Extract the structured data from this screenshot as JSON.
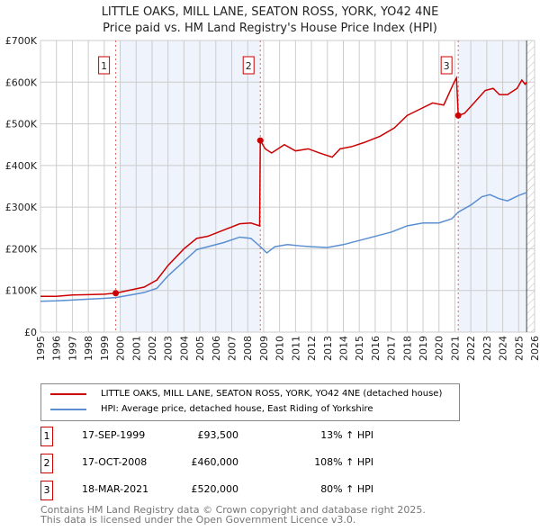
{
  "chart_data": {
    "type": "line",
    "title": "LITTLE OAKS, MILL LANE, SEATON ROSS, YORK, YO42 4NE",
    "subtitle": "Price paid vs. HM Land Registry's House Price Index (HPI)",
    "xlim": [
      1995,
      2026
    ],
    "ylim": [
      0,
      700000
    ],
    "x_ticks": [
      "1995",
      "1996",
      "1997",
      "1998",
      "1999",
      "2000",
      "2001",
      "2002",
      "2003",
      "2004",
      "2005",
      "2006",
      "2007",
      "2008",
      "2009",
      "2010",
      "2011",
      "2012",
      "2013",
      "2014",
      "2015",
      "2016",
      "2017",
      "2018",
      "2019",
      "2020",
      "2021",
      "2022",
      "2023",
      "2024",
      "2025",
      "2026"
    ],
    "y_ticks": [
      {
        "v": 0,
        "label": "£0"
      },
      {
        "v": 100000,
        "label": "£100K"
      },
      {
        "v": 200000,
        "label": "£200K"
      },
      {
        "v": 300000,
        "label": "£300K"
      },
      {
        "v": 400000,
        "label": "£400K"
      },
      {
        "v": 500000,
        "label": "£500K"
      },
      {
        "v": 600000,
        "label": "£600K"
      },
      {
        "v": 700000,
        "label": "£700K"
      }
    ],
    "series": [
      {
        "name": "LITTLE OAKS, MILL LANE, SEATON ROSS, YORK, YO42 4NE (detached house)",
        "color": "#cc0000",
        "x": [
          1995,
          1996,
          1997,
          1998,
          1999,
          1999.72,
          2000.5,
          2001.5,
          2002.3,
          2003,
          2004,
          2004.8,
          2005.5,
          2006.5,
          2007.5,
          2008.2,
          2008.75,
          2008.79,
          2009.1,
          2009.5,
          2010.3,
          2011,
          2011.8,
          2012.5,
          2013.3,
          2013.8,
          2014.5,
          2015.3,
          2016.3,
          2017.2,
          2018,
          2018.8,
          2019.6,
          2020.3,
          2020.95,
          2021.1,
          2021.21,
          2021.6,
          2022.2,
          2022.9,
          2023.4,
          2023.8,
          2024.3,
          2024.9,
          2025.2,
          2025.4,
          2025.5
        ],
        "y": [
          86000,
          86000,
          89000,
          90000,
          91000,
          93500,
          100000,
          108000,
          125000,
          160000,
          200000,
          225000,
          230000,
          245000,
          260000,
          262000,
          255000,
          460000,
          440000,
          430000,
          450000,
          435000,
          440000,
          430000,
          420000,
          440000,
          445000,
          455000,
          470000,
          490000,
          520000,
          535000,
          550000,
          545000,
          600000,
          610000,
          520000,
          525000,
          550000,
          580000,
          585000,
          570000,
          570000,
          585000,
          605000,
          595000,
          600000
        ]
      },
      {
        "name": "HPI: Average price, detached house, East Riding of Yorkshire",
        "color": "#5b8fd1",
        "x": [
          1995,
          1996,
          1997,
          1998,
          1999,
          1999.72,
          2000.5,
          2001.5,
          2002.3,
          2003,
          2004,
          2004.8,
          2005.5,
          2006.5,
          2007.5,
          2008.2,
          2008.8,
          2009.2,
          2009.7,
          2010.5,
          2011.3,
          2012,
          2013,
          2014,
          2015,
          2016,
          2017,
          2018,
          2019,
          2020,
          2020.8,
          2021.21,
          2022,
          2022.7,
          2023.2,
          2023.8,
          2024.3,
          2025,
          2025.5
        ],
        "y": [
          74000,
          75000,
          77000,
          79000,
          81000,
          83000,
          88000,
          95000,
          105000,
          135000,
          170000,
          198000,
          205000,
          215000,
          228000,
          225000,
          205000,
          190000,
          205000,
          210000,
          207000,
          205000,
          203000,
          210000,
          220000,
          230000,
          240000,
          255000,
          262000,
          262000,
          272000,
          288000,
          305000,
          325000,
          330000,
          320000,
          315000,
          328000,
          335000
        ]
      }
    ],
    "sales": [
      {
        "n": "1",
        "date": "17-SEP-1999",
        "x": 1999.72,
        "price": "£93,500",
        "value": 93500,
        "hpi": "13% ↑ HPI"
      },
      {
        "n": "2",
        "date": "17-OCT-2008",
        "x": 2008.79,
        "price": "£460,000",
        "value": 460000,
        "hpi": "108% ↑ HPI"
      },
      {
        "n": "3",
        "date": "18-MAR-2021",
        "x": 2021.21,
        "price": "£520,000",
        "value": 520000,
        "hpi": "80% ↑ HPI"
      }
    ],
    "shaded_ranges": [
      [
        2000,
        2008.79
      ],
      [
        2021.21,
        2025.5
      ]
    ],
    "forecast_from": 2025.5,
    "legend_position": "below"
  },
  "footer": {
    "line1": "Contains HM Land Registry data © Crown copyright and database right 2025.",
    "line2": "This data is licensed under the Open Government Licence v3.0."
  }
}
